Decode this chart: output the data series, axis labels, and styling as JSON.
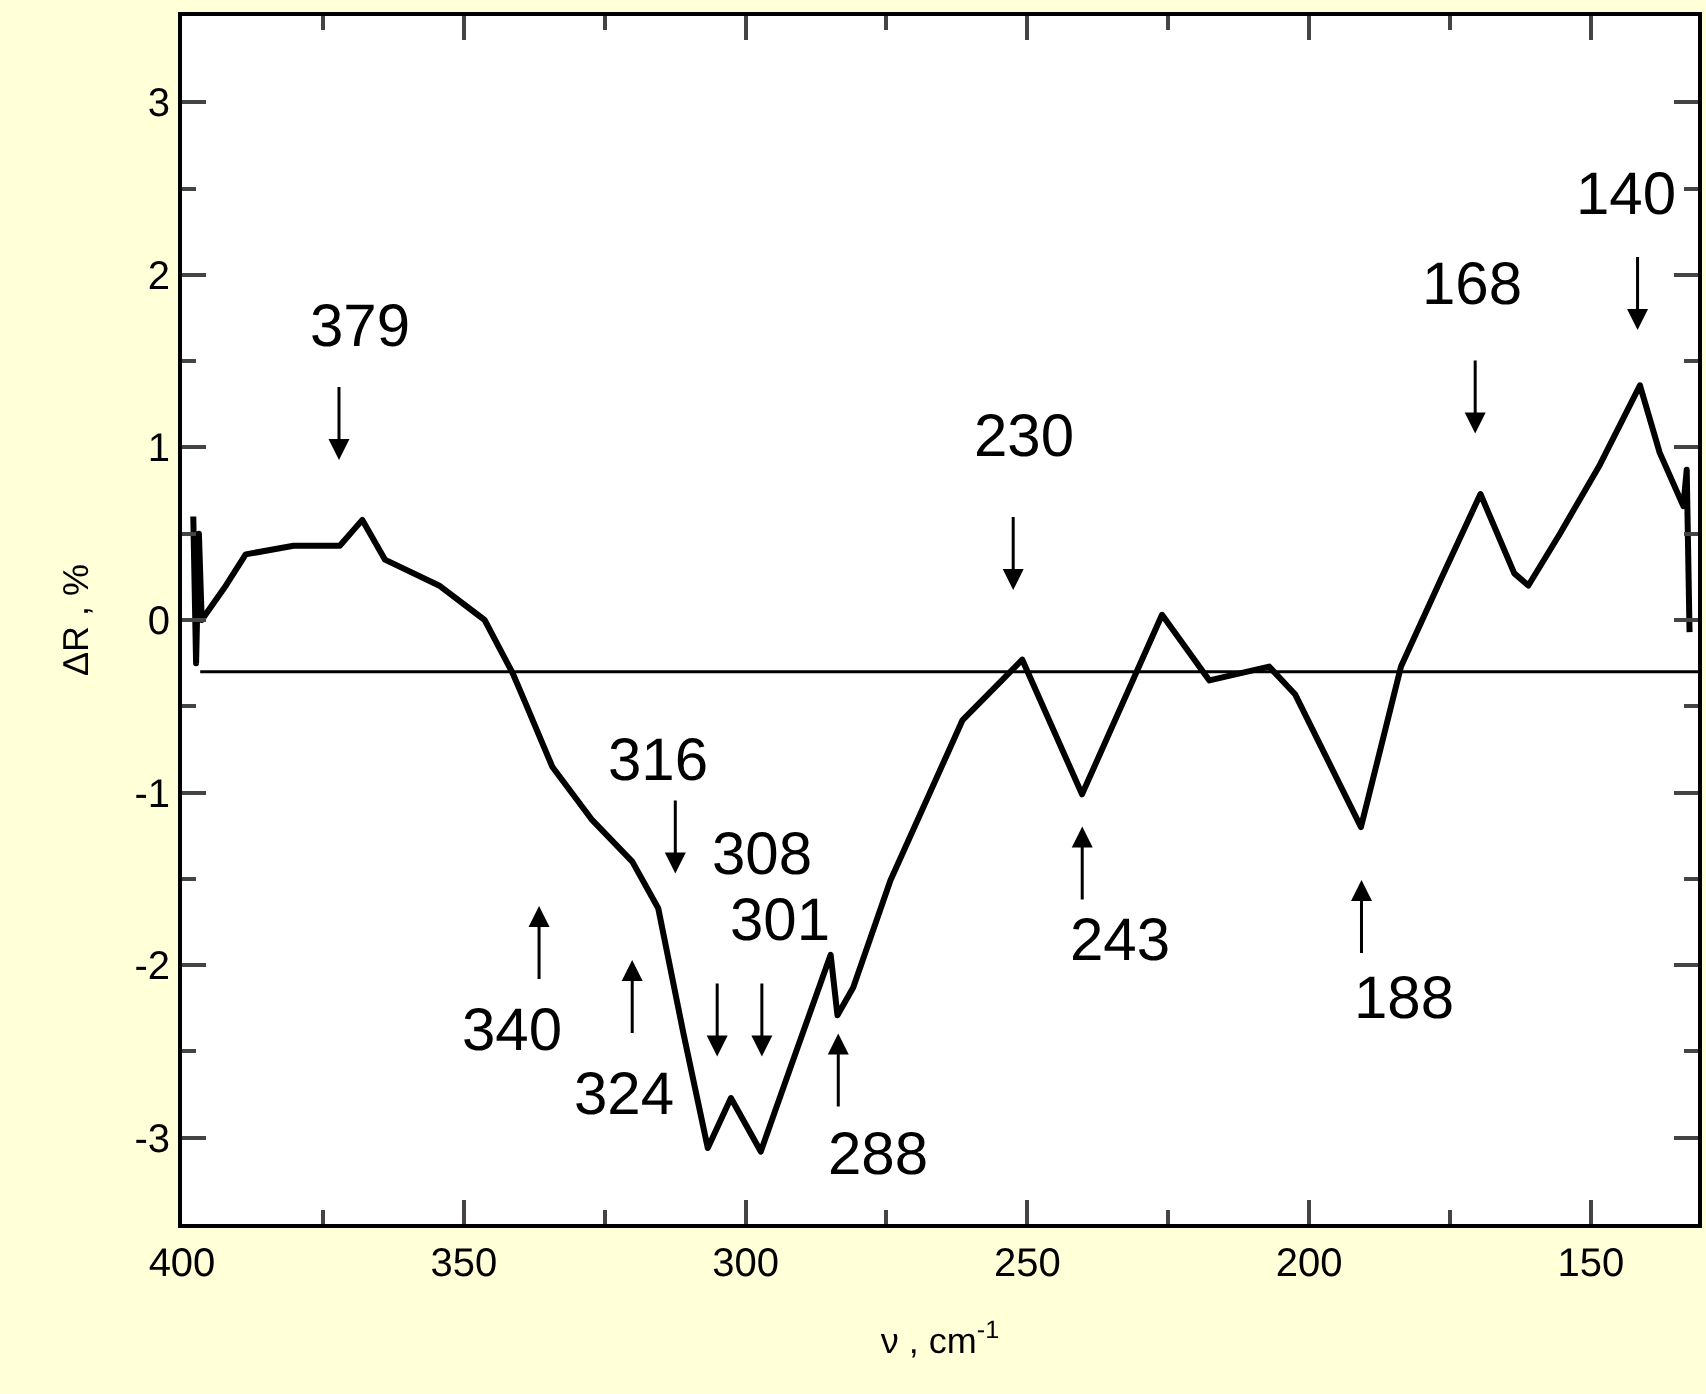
{
  "chart_data": {
    "type": "line",
    "xlabel": "ν , cm$^{-1}$",
    "ylabel": "ΔR , %",
    "xlim": [
      400,
      131
    ],
    "xticks": [
      400,
      350,
      300,
      250,
      200,
      150
    ],
    "ylim": [
      -3.5,
      3.5
    ],
    "yticks": [
      -3,
      -2,
      -1,
      0,
      1,
      2,
      3
    ],
    "marker": "none",
    "line_style": "solid",
    "series": [
      {
        "color": "#000000",
        "x": [
          398,
          397.5,
          397,
          396.5,
          392.2,
          388.7,
          380.2,
          372,
          368,
          364,
          354.4,
          346.3,
          341.3,
          339.2,
          334.3,
          327.2,
          320.1,
          315.5,
          311,
          306.7,
          302.6,
          297.3,
          292,
          284.9,
          283.7,
          280.9,
          274.3,
          263.7,
          261.5,
          250.9,
          240.3,
          226.1,
          217.7,
          207.1,
          202.5,
          190.8,
          183.7,
          176.7,
          169.6,
          163.6,
          161.1,
          155.5,
          148.4,
          141.3,
          137.8,
          133.6,
          133,
          132.5
        ],
        "values": [
          0.6,
          -0.25,
          0.5,
          0.0,
          0.2,
          0.38,
          0.43,
          0.43,
          0.58,
          0.35,
          0.2,
          0.0,
          -0.31,
          -0.47,
          -0.85,
          -1.16,
          -1.4,
          -1.67,
          -2.4,
          -3.06,
          -2.77,
          -3.08,
          -2.59,
          -1.94,
          -2.29,
          -2.13,
          -1.51,
          -0.74,
          -0.58,
          -0.23,
          -1.01,
          0.03,
          -0.35,
          -0.27,
          -0.43,
          -1.2,
          -0.27,
          0.23,
          0.73,
          0.27,
          0.2,
          0.5,
          0.9,
          1.36,
          0.97,
          0.66,
          0.87,
          -0.07
        ]
      }
    ],
    "ref_lines": [
      {
        "axis": "y",
        "value": -0.3,
        "color": "#000000"
      }
    ],
    "annotations": [
      "379",
      "230",
      "168",
      "140",
      "316",
      "308",
      "301",
      "340",
      "324",
      "288",
      "243",
      "188"
    ]
  }
}
